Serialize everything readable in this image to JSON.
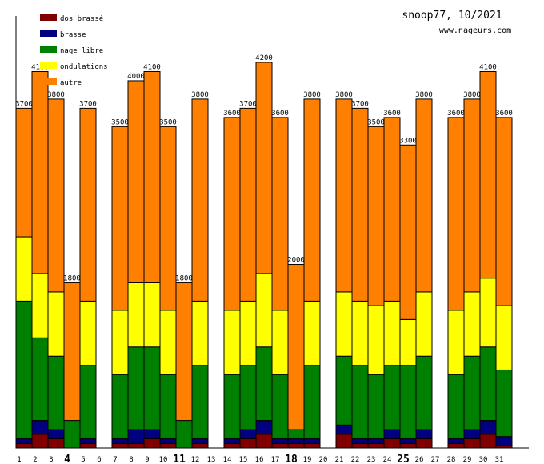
{
  "chart_data": {
    "type": "bar",
    "stacked": true,
    "title": "snoop77, 10/2021",
    "subtitle": "www.nageurs.com",
    "xlabel": "",
    "ylabel": "",
    "ylim": [
      0,
      4700
    ],
    "legend_position": "top-left",
    "categories": [
      "1",
      "2",
      "3",
      "4",
      "5",
      "6",
      "7",
      "8",
      "9",
      "10",
      "11",
      "12",
      "13",
      "14",
      "15",
      "16",
      "17",
      "18",
      "19",
      "20",
      "21",
      "22",
      "23",
      "24",
      "25",
      "26",
      "27",
      "28",
      "29",
      "30",
      "31"
    ],
    "highlighted_categories": [
      "4",
      "11",
      "18",
      "25"
    ],
    "totals": [
      3700,
      4100,
      3800,
      1800,
      3700,
      0,
      3500,
      4000,
      4100,
      3500,
      1800,
      3800,
      0,
      3600,
      3700,
      4200,
      3600,
      2000,
      3800,
      0,
      3800,
      3700,
      3500,
      3600,
      3300,
      3800,
      0,
      3600,
      3800,
      4100,
      3600
    ],
    "series": [
      {
        "name": "dos brassé",
        "color": "#800000",
        "values": [
          50,
          150,
          100,
          0,
          50,
          0,
          50,
          50,
          100,
          50,
          0,
          50,
          0,
          50,
          100,
          150,
          50,
          50,
          50,
          0,
          150,
          50,
          50,
          100,
          50,
          100,
          0,
          50,
          100,
          150,
          25
        ]
      },
      {
        "name": "brasse",
        "color": "#000080",
        "values": [
          50,
          150,
          100,
          0,
          50,
          0,
          50,
          150,
          100,
          50,
          0,
          50,
          0,
          50,
          100,
          150,
          50,
          50,
          50,
          0,
          100,
          50,
          50,
          100,
          50,
          100,
          0,
          50,
          100,
          150,
          100
        ]
      },
      {
        "name": "nage libre",
        "color": "#008000",
        "values": [
          1500,
          900,
          800,
          300,
          800,
          0,
          700,
          900,
          900,
          700,
          300,
          800,
          0,
          700,
          700,
          800,
          700,
          100,
          800,
          0,
          750,
          800,
          700,
          700,
          800,
          800,
          0,
          700,
          800,
          800,
          725
        ]
      },
      {
        "name": "ondulations",
        "color": "#ffff00",
        "values": [
          700,
          700,
          700,
          0,
          700,
          0,
          700,
          700,
          700,
          700,
          0,
          700,
          0,
          700,
          700,
          800,
          700,
          0,
          700,
          0,
          700,
          700,
          750,
          700,
          500,
          700,
          0,
          700,
          700,
          750,
          700
        ]
      },
      {
        "name": "autre",
        "color": "#ff8000",
        "values": [
          1400,
          2200,
          2100,
          1500,
          2100,
          0,
          2000,
          2200,
          2300,
          2000,
          1500,
          2200,
          0,
          2100,
          2100,
          2300,
          2100,
          1800,
          2200,
          0,
          2100,
          2100,
          1950,
          2000,
          1900,
          2100,
          0,
          2100,
          2100,
          2250,
          2050
        ]
      }
    ]
  }
}
